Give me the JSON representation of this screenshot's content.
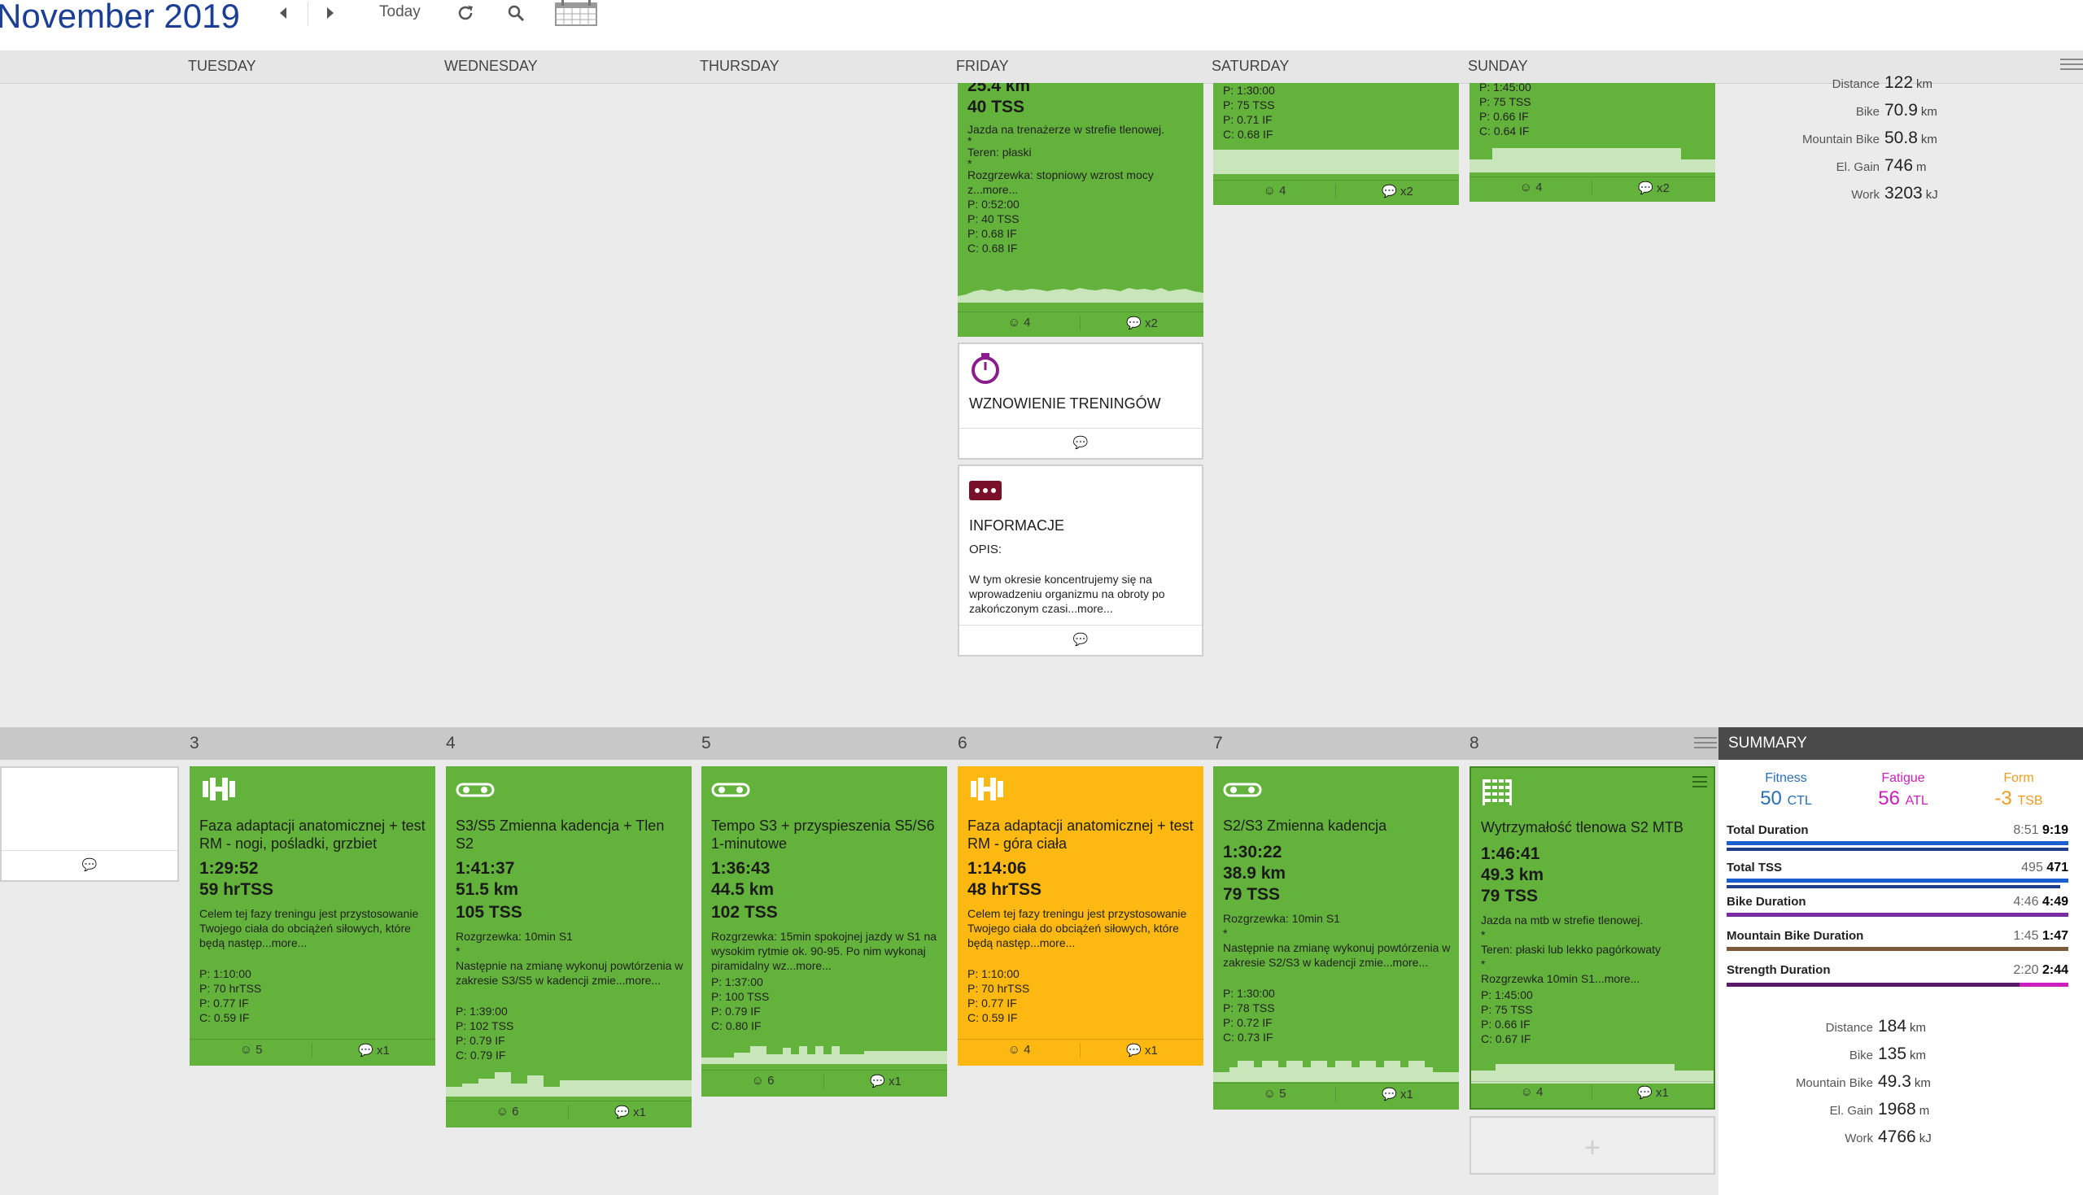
{
  "header": {
    "month_title": "November 2019",
    "today_label": "Today"
  },
  "days": [
    "TUESDAY",
    "WEDNESDAY",
    "THURSDAY",
    "FRIDAY",
    "SATURDAY",
    "SUNDAY"
  ],
  "top_week": {
    "friday_card": {
      "distance": "25.4 km",
      "tss": "40 TSS",
      "desc": [
        "Jazda na trenażerze w strefie tlenowej.",
        "*",
        "Teren: płaski",
        "*",
        "Rozgrzewka: stopniowy wzrost mocy z...more..."
      ],
      "planned": [
        "P: 0:52:00",
        "P: 40 TSS",
        "P: 0.68 IF",
        "C: 0.68 IF"
      ],
      "foot_left": "4",
      "foot_right": "x2"
    },
    "saturday_card": {
      "planned": [
        "P: 1:30:00",
        "P: 75 TSS",
        "P: 0.71 IF",
        "C: 0.68 IF"
      ],
      "foot_left": "4",
      "foot_right": "x2"
    },
    "sunday_card": {
      "planned": [
        "P: 1:45:00",
        "P: 75 TSS",
        "P: 0.66 IF",
        "C: 0.64 IF"
      ],
      "foot_left": "4",
      "foot_right": "x2"
    },
    "event_resume": {
      "title": "WZNOWIENIE TRENINGÓW"
    },
    "event_info": {
      "title": "INFORMACJE",
      "label": "OPIS:",
      "text": "W tym okresie koncentrujemy się na wprowadzeniu organizmu na obroty po zakończonym czasi...more..."
    },
    "totals": [
      {
        "k": "Distance",
        "v": "122",
        "u": "km"
      },
      {
        "k": "Bike",
        "v": "70.9",
        "u": "km"
      },
      {
        "k": "Mountain Bike",
        "v": "50.8",
        "u": "km"
      },
      {
        "k": "El. Gain",
        "v": "746",
        "u": "m"
      },
      {
        "k": "Work",
        "v": "3203",
        "u": "kJ"
      }
    ]
  },
  "week2": {
    "day_numbers": [
      "3",
      "4",
      "5",
      "6",
      "7",
      "8"
    ],
    "summary_label": "SUMMARY",
    "cards": [
      {
        "title": "Faza adaptacji anatomicznej + test RM - nogi, pośladki, grzbiet",
        "duration": "1:29:52",
        "stats": [
          "59 hrTSS"
        ],
        "desc": "Celem tej fazy treningu jest przystosowanie Twojego ciała do obciążeń siłowych, które będą następ...more...",
        "planned": [
          "P: 1:10:00",
          "P: 70 hrTSS",
          "P: 0.77 IF",
          "C: 0.59 IF"
        ],
        "foot_left": "5",
        "foot_right": "x1"
      },
      {
        "title": "S3/S5 Zmienna kadencja + Tlen S2",
        "duration": "1:41:37",
        "stats": [
          "51.5 km",
          "105 TSS"
        ],
        "desc": "Rozgrzewka: 10min S1\n*\nNastępnie na zmianę wykonuj powtórzenia w zakresie S3/S5 w kadencji zmie...more...",
        "planned": [
          "P: 1:39:00",
          "P: 102 TSS",
          "P: 0.79 IF",
          "C: 0.79 IF"
        ],
        "foot_left": "6",
        "foot_right": "x1"
      },
      {
        "title": "Tempo S3 + przyspieszenia S5/S6 1-minutowe",
        "duration": "1:36:43",
        "stats": [
          "44.5 km",
          "102 TSS"
        ],
        "desc": "Rozgrzewka: 15min spokojnej jazdy w S1 na wysokim rytmie ok. 90-95. Po nim wykonaj piramidalny wz...more...",
        "planned": [
          "P: 1:37:00",
          "P: 100 TSS",
          "P: 0.79 IF",
          "C: 0.80 IF"
        ],
        "foot_left": "6",
        "foot_right": "x1"
      },
      {
        "title": "Faza adaptacji anatomicznej + test RM - góra ciała",
        "duration": "1:14:06",
        "stats": [
          "48 hrTSS"
        ],
        "desc": "Celem tej fazy treningu jest przystosowanie Twojego ciała do obciążeń siłowych, które będą następ...more...",
        "planned": [
          "P: 1:10:00",
          "P: 70 hrTSS",
          "P: 0.77 IF",
          "C: 0.59 IF"
        ],
        "foot_left": "4",
        "foot_right": "x1"
      },
      {
        "title": "S2/S3 Zmienna kadencja",
        "duration": "1:30:22",
        "stats": [
          "38.9 km",
          "79 TSS"
        ],
        "desc": "Rozgrzewka: 10min S1\n*\nNastępnie na zmianę wykonuj powtórzenia w zakresie S2/S3 w kadencji zmie...more...",
        "planned": [
          "P: 1:30:00",
          "P: 78 TSS",
          "P: 0.72 IF",
          "C: 0.73 IF"
        ],
        "foot_left": "5",
        "foot_right": "x1"
      },
      {
        "title": "Wytrzymałość tlenowa S2 MTB",
        "duration": "1:46:41",
        "stats": [
          "49.3 km",
          "79 TSS"
        ],
        "desc": "Jazda na mtb w strefie tlenowej.\n*\nTeren: płaski lub lekko pagórkowaty\n*\nRozgrzewka 10min S1...more...",
        "planned": [
          "P: 1:45:00",
          "P: 75 TSS",
          "P: 0.66 IF",
          "C: 0.67 IF"
        ],
        "foot_left": "4",
        "foot_right": "x1"
      }
    ],
    "summary": {
      "fitness": {
        "label": "Fitness",
        "value": "50",
        "unit": "CTL",
        "color": "#2a6fb5"
      },
      "fatigue": {
        "label": "Fatigue",
        "value": "56",
        "unit": "ATL",
        "color": "#cc1fbd"
      },
      "form": {
        "label": "Form",
        "value": "-3",
        "unit": "TSB",
        "color": "#f29c1f"
      },
      "rows": [
        {
          "name": "Total Duration",
          "planned": "8:51",
          "actual": "9:19",
          "color": "#1a5fcf"
        },
        {
          "name": "Total TSS",
          "planned": "495",
          "actual": "471",
          "color": "#1a5fcf"
        },
        {
          "name": "Bike Duration",
          "planned": "4:46",
          "actual": "4:49",
          "color": "#7a2aa3"
        },
        {
          "name": "Mountain Bike Duration",
          "planned": "1:45",
          "actual": "1:47",
          "color": "#7a5a3a"
        },
        {
          "name": "Strength Duration",
          "planned": "2:20",
          "actual": "2:44",
          "color": "#cc1fbd"
        }
      ],
      "totals": [
        {
          "k": "Distance",
          "v": "184",
          "u": "km"
        },
        {
          "k": "Bike",
          "v": "135",
          "u": "km"
        },
        {
          "k": "Mountain Bike",
          "v": "49.3",
          "u": "km"
        },
        {
          "k": "El. Gain",
          "v": "1968",
          "u": "m"
        },
        {
          "k": "Work",
          "v": "4766",
          "u": "kJ"
        }
      ]
    }
  },
  "colors": {
    "completed": "#63b23c",
    "partial": "#fdb811",
    "title_blue": "#1c3f94"
  },
  "icons": [
    "arrow-left-icon",
    "arrow-right-icon",
    "refresh-icon",
    "search-icon",
    "calendar-icon",
    "dumbbell-icon",
    "bike-icon",
    "mtb-icon",
    "stopwatch-icon",
    "more-dots-icon",
    "smiley-icon",
    "comment-icon",
    "menu-icon",
    "plus-icon"
  ]
}
